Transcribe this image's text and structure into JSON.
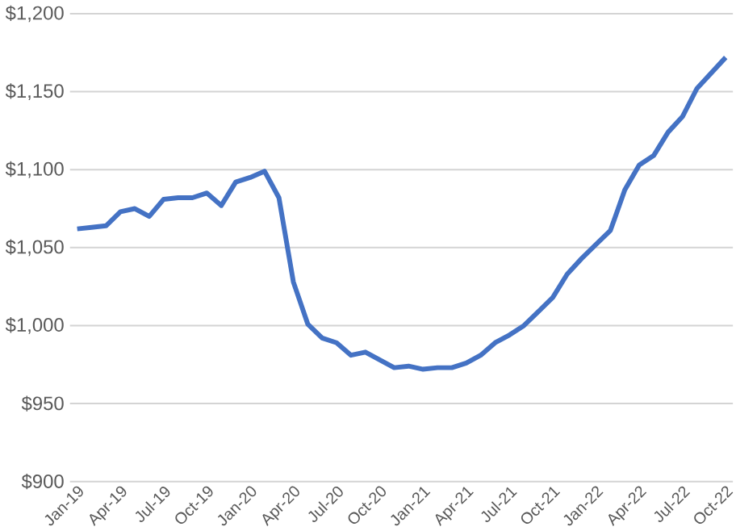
{
  "chart_data": {
    "type": "line",
    "categories": [
      "Jan-19",
      null,
      null,
      "Apr-19",
      null,
      null,
      "Jul-19",
      null,
      null,
      "Oct-19",
      null,
      null,
      "Jan-20",
      null,
      null,
      "Apr-20",
      null,
      null,
      "Jul-20",
      null,
      null,
      "Oct-20",
      null,
      null,
      "Jan-21",
      null,
      null,
      "Apr-21",
      null,
      null,
      "Jul-21",
      null,
      null,
      "Oct-21",
      null,
      null,
      "Jan-22",
      null,
      null,
      "Apr-22",
      null,
      null,
      "Jul-22",
      null,
      null,
      "Oct-22"
    ],
    "series": [
      {
        "color": "#4472c4",
        "values": [
          1062,
          1063,
          1064,
          1073,
          1075,
          1070,
          1081,
          1082,
          1082,
          1085,
          1077,
          1092,
          1095,
          1099,
          1082,
          1028,
          1001,
          992,
          989,
          981,
          983,
          978,
          973,
          974,
          972,
          973,
          973,
          976,
          981,
          989,
          994,
          1000,
          1009,
          1018,
          1033,
          1043,
          1052,
          1061,
          1087,
          1103,
          1109,
          1124,
          1134,
          1152,
          1162,
          1172
        ]
      }
    ],
    "ylim": [
      900,
      1200
    ],
    "yticks": [
      {
        "value": 900,
        "label": "$900"
      },
      {
        "value": 950,
        "label": "$950"
      },
      {
        "value": 1000,
        "label": "$1,000"
      },
      {
        "value": 1050,
        "label": "$1,050"
      },
      {
        "value": 1100,
        "label": "$1,100"
      },
      {
        "value": 1150,
        "label": "$1,150"
      },
      {
        "value": 1200,
        "label": "$1,200"
      }
    ],
    "grid": "y",
    "legend": false,
    "marker": "none",
    "line_style": "solid"
  }
}
